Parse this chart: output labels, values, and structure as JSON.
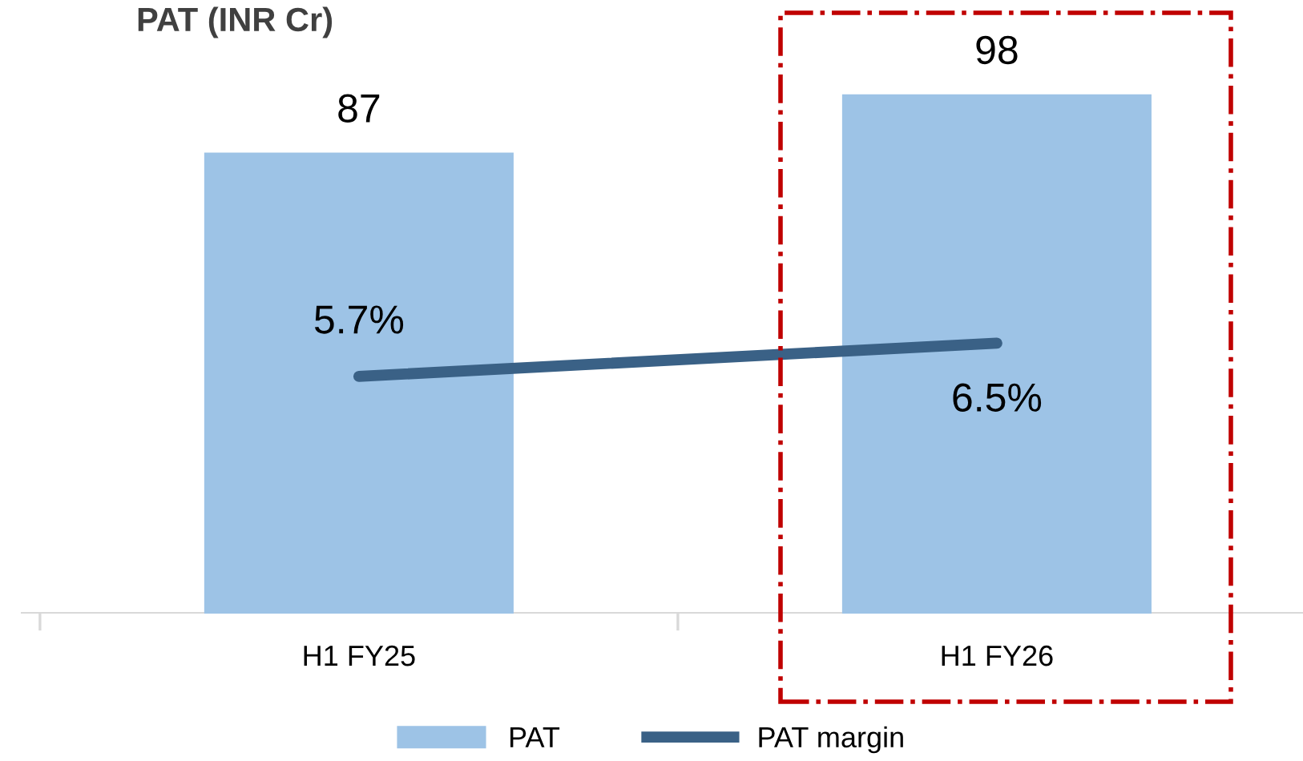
{
  "chart_data": {
    "type": "bar",
    "title": "PAT (INR Cr)",
    "categories": [
      "H1 FY25",
      "H1 FY26"
    ],
    "series": [
      {
        "name": "PAT",
        "color": "#9dc3e6",
        "values": [
          87,
          98
        ],
        "data_labels": true
      },
      {
        "name": "PAT margin",
        "type": "line",
        "axis": "y2",
        "color": "#3a6186",
        "values": [
          5.7,
          6.5
        ],
        "value_labels": [
          "5.7%",
          "6.5%"
        ]
      }
    ],
    "tick_labels": "x",
    "grid": false,
    "legend": "bottom",
    "marker": "none",
    "line_style": "solid"
  }
}
